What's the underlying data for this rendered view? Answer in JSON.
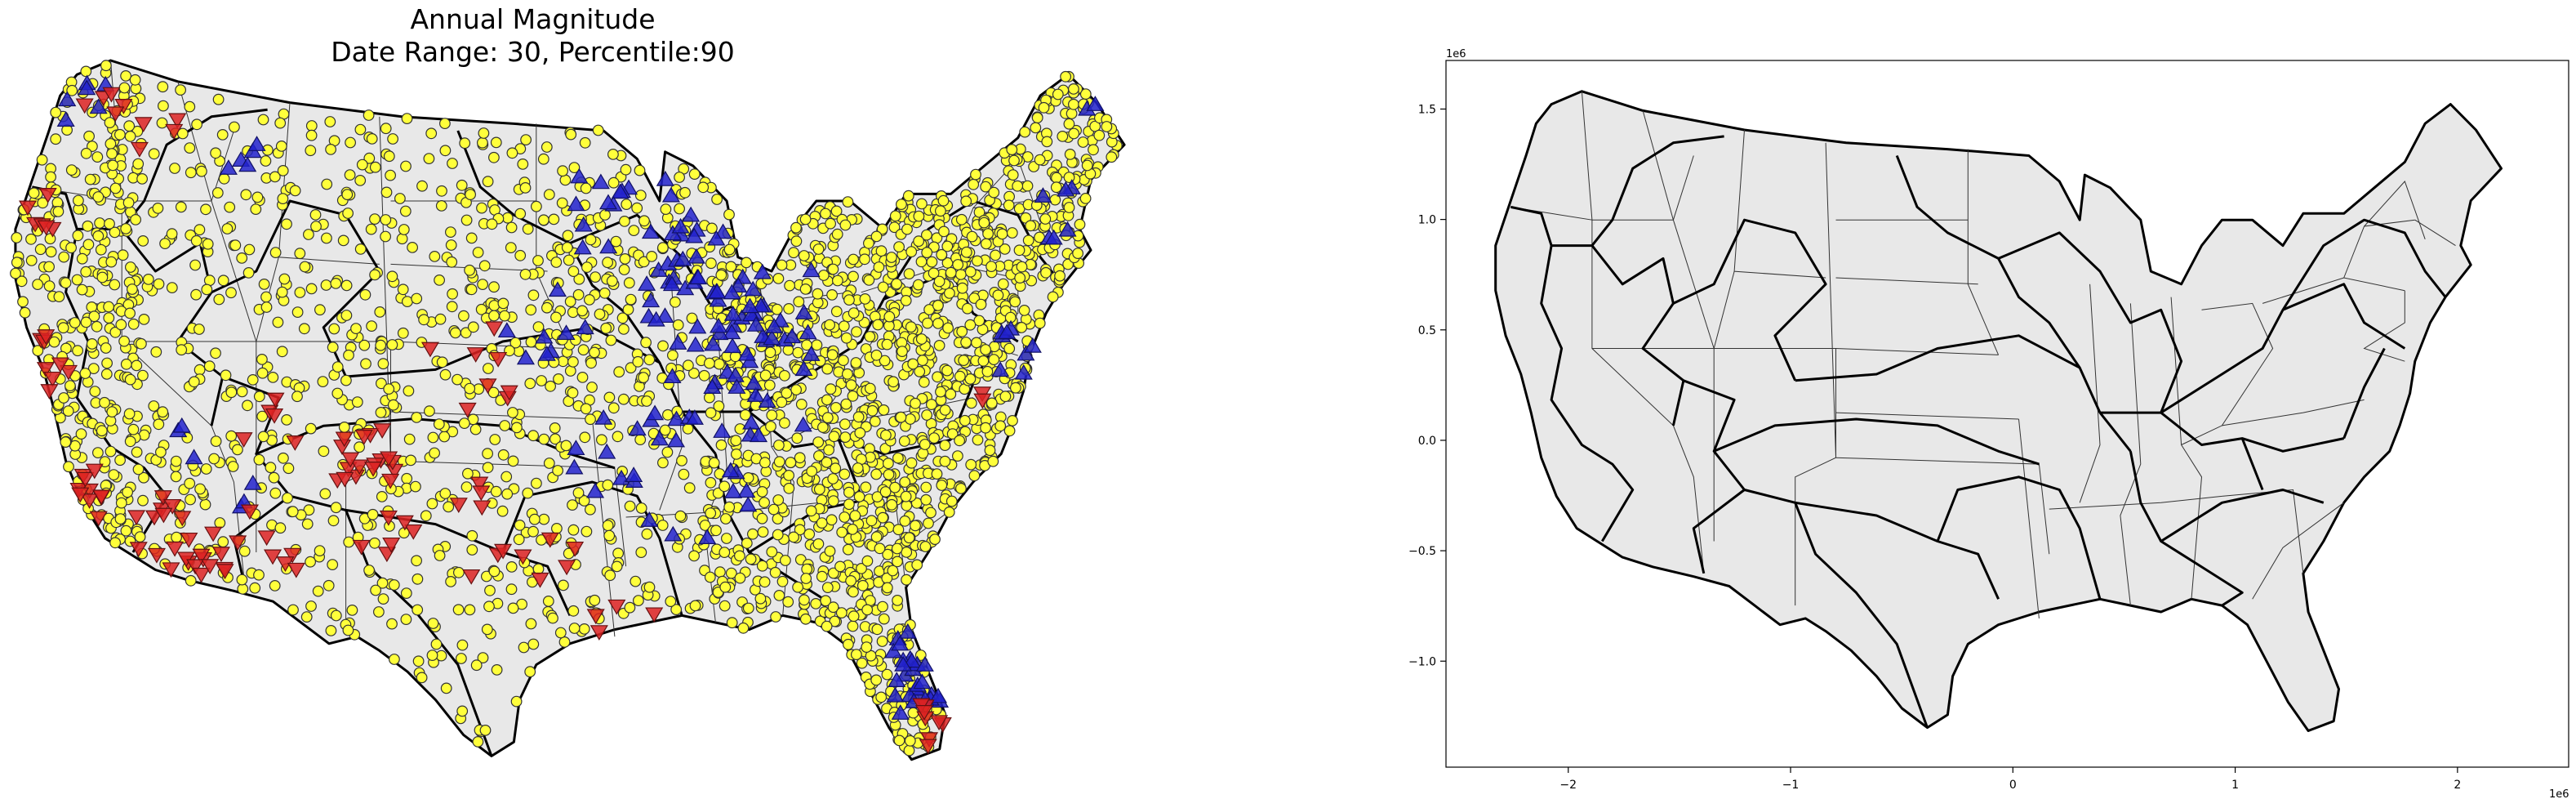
{
  "left_map": {
    "title_line1": "Annual Magnitude",
    "title_line2": "Date Range: 30, Percentile:90",
    "markers": {
      "neutral": {
        "shape": "circle",
        "fill": "#ffff3b",
        "edge": "#333333"
      },
      "increase": {
        "shape": "triangle-up",
        "fill": "#2222cc",
        "edge": "#111166"
      },
      "decrease": {
        "shape": "triangle-down",
        "fill": "#dd2222",
        "edge": "#661111"
      }
    }
  },
  "right_map": {
    "axes_frame": true,
    "x_offset_label": "1e6",
    "y_offset_label": "1e6"
  },
  "chart_data": {
    "type": "scatter",
    "x_ticks": [
      -2,
      -1,
      0,
      1,
      2
    ],
    "x_tick_labels": [
      "−2",
      "−1",
      "0",
      "1",
      "2"
    ],
    "y_ticks": [
      1.5,
      1.0,
      0.5,
      0.0,
      -0.5,
      -1.0
    ],
    "y_tick_labels": [
      "1.5",
      "1.0",
      "0.5",
      "0.0",
      "−0.5",
      "−1.0"
    ],
    "xlim": [
      -2.55,
      2.5
    ],
    "ylim": [
      -1.48,
      1.72
    ],
    "scale": "1e6",
    "land_color": "#e8e8e8",
    "boundary_color": "#000000"
  }
}
